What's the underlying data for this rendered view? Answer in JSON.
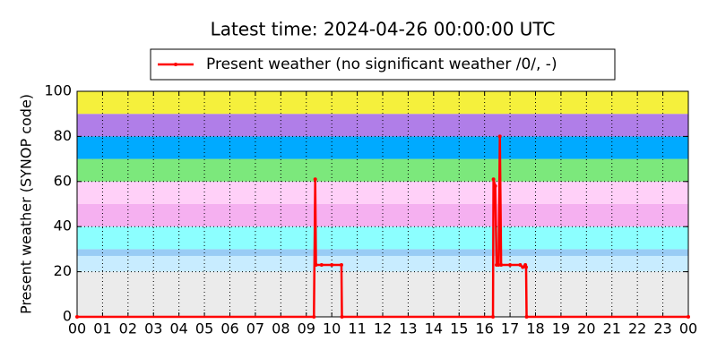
{
  "chart_data": {
    "type": "line",
    "title": "Latest time: 2024-04-26 00:00:00 UTC",
    "y_label": "Present weather (SYNOP code)",
    "xlim": [
      0,
      24
    ],
    "xticks": [
      {
        "value": 0,
        "label": "00"
      },
      {
        "value": 1,
        "label": "01"
      },
      {
        "value": 2,
        "label": "02"
      },
      {
        "value": 3,
        "label": "03"
      },
      {
        "value": 4,
        "label": "04"
      },
      {
        "value": 5,
        "label": "05"
      },
      {
        "value": 6,
        "label": "06"
      },
      {
        "value": 7,
        "label": "07"
      },
      {
        "value": 8,
        "label": "08"
      },
      {
        "value": 9,
        "label": "09"
      },
      {
        "value": 10,
        "label": "10"
      },
      {
        "value": 11,
        "label": "11"
      },
      {
        "value": 12,
        "label": "12"
      },
      {
        "value": 13,
        "label": "13"
      },
      {
        "value": 14,
        "label": "14"
      },
      {
        "value": 15,
        "label": "15"
      },
      {
        "value": 16,
        "label": "16"
      },
      {
        "value": 17,
        "label": "17"
      },
      {
        "value": 18,
        "label": "18"
      },
      {
        "value": 19,
        "label": "19"
      },
      {
        "value": 20,
        "label": "20"
      },
      {
        "value": 21,
        "label": "21"
      },
      {
        "value": 22,
        "label": "22"
      },
      {
        "value": 23,
        "label": "23"
      },
      {
        "value": 24,
        "label": "00"
      }
    ],
    "ylim": [
      0,
      100
    ],
    "yticks": [
      0,
      20,
      40,
      60,
      80,
      100
    ],
    "grid": true,
    "legend_position": "top",
    "bands": [
      {
        "from": 0,
        "to": 20,
        "color": "#ebebeb"
      },
      {
        "from": 20,
        "to": 27,
        "color": "#c8ecff"
      },
      {
        "from": 27,
        "to": 30,
        "color": "#99ccf5"
      },
      {
        "from": 30,
        "to": 40,
        "color": "#8cffff"
      },
      {
        "from": 40,
        "to": 50,
        "color": "#f5b0f0"
      },
      {
        "from": 50,
        "to": 60,
        "color": "#ffd0f8"
      },
      {
        "from": 60,
        "to": 70,
        "color": "#7ce87c"
      },
      {
        "from": 70,
        "to": 80,
        "color": "#00aaff"
      },
      {
        "from": 80,
        "to": 90,
        "color": "#b07ee8"
      },
      {
        "from": 90,
        "to": 100,
        "color": "#f5f03c"
      }
    ],
    "series": [
      {
        "name": "Present weather (no significant weather /0/, -)",
        "color": "#ff0000",
        "x": [
          0,
          9.3,
          9.35,
          9.38,
          9.6,
          10.0,
          10.38,
          10.4,
          16.33,
          16.35,
          16.42,
          16.47,
          16.55,
          16.6,
          16.65,
          17.0,
          17.4,
          17.5,
          17.6,
          17.63,
          17.65,
          24
        ],
        "values": [
          0,
          0,
          61,
          23,
          23,
          23,
          23,
          0,
          0,
          61,
          58,
          23,
          23,
          80,
          23,
          23,
          23,
          22,
          23,
          22,
          0,
          0
        ]
      }
    ]
  }
}
